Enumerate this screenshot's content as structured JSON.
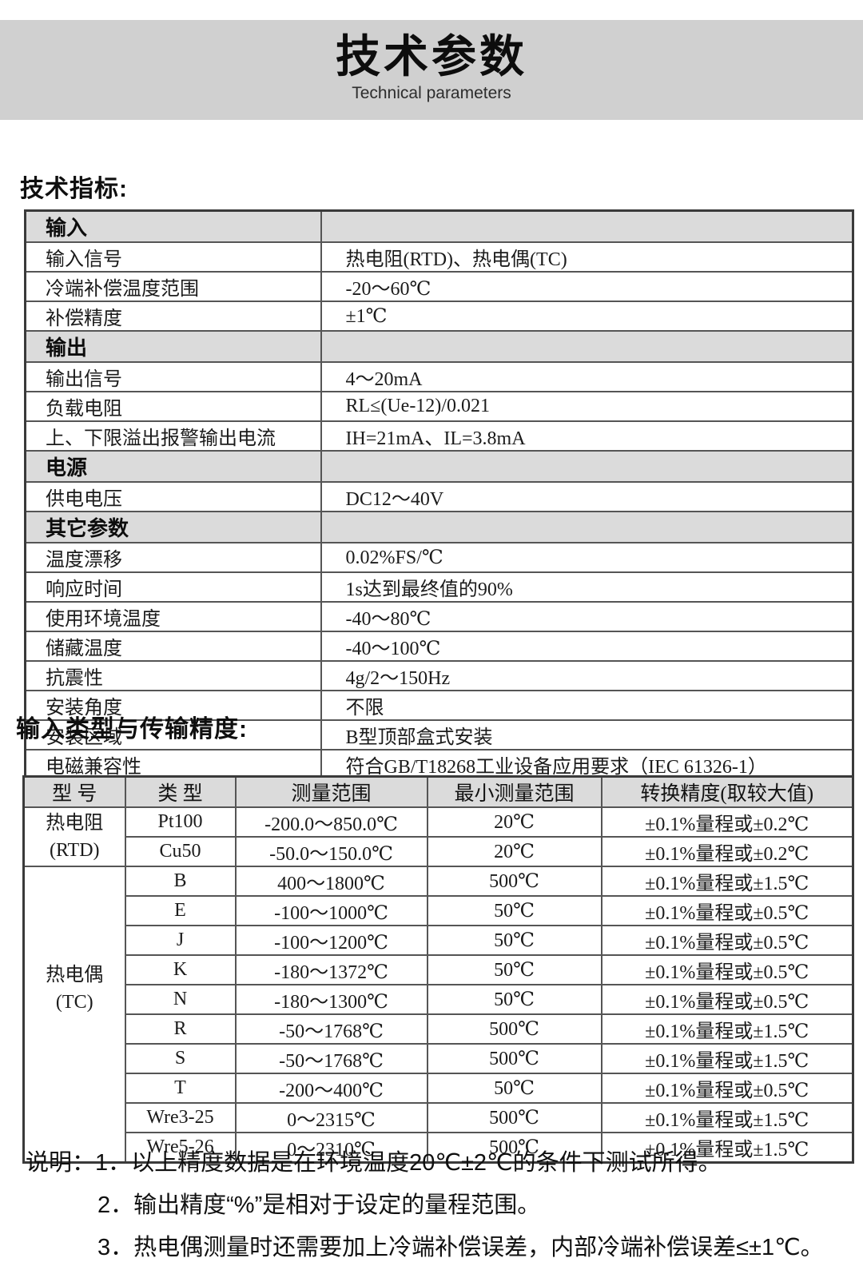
{
  "page": {
    "title": "技术参数",
    "subtitle": "Technical parameters"
  },
  "sections": {
    "spec_heading": "技术指标:",
    "accuracy_heading": "输入类型与传输精度:"
  },
  "colors": {
    "banner_bg": "#d0d0d0",
    "section_row_bg": "#dbdbdb",
    "border": "#555555",
    "text": "#1b1b1b"
  },
  "spec_table": {
    "rows": [
      {
        "type": "section",
        "label": "输入",
        "value": ""
      },
      {
        "type": "data",
        "label": "输入信号",
        "value": "热电阻(RTD)、热电偶(TC)"
      },
      {
        "type": "data",
        "label": "冷端补偿温度范围",
        "value": "-20～60℃"
      },
      {
        "type": "data",
        "label": "补偿精度",
        "value": "±1℃"
      },
      {
        "type": "section",
        "label": "输出",
        "value": ""
      },
      {
        "type": "data",
        "label": "输出信号",
        "value": "4～20mA"
      },
      {
        "type": "data",
        "label": "负载电阻",
        "value": "RL≤(Ue-12)/0.021"
      },
      {
        "type": "data",
        "label": "上、下限溢出报警输出电流",
        "value": "IH=21mA、IL=3.8mA"
      },
      {
        "type": "section",
        "label": "电源",
        "value": ""
      },
      {
        "type": "data",
        "label": "供电电压",
        "value": "DC12～40V"
      },
      {
        "type": "section",
        "label": "其它参数",
        "value": ""
      },
      {
        "type": "data",
        "label": "温度漂移",
        "value": "0.02%FS/℃"
      },
      {
        "type": "data",
        "label": "响应时间",
        "value": "1s达到最终值的90%"
      },
      {
        "type": "data",
        "label": "使用环境温度",
        "value": "-40～80℃"
      },
      {
        "type": "data",
        "label": "储藏温度",
        "value": "-40～100℃"
      },
      {
        "type": "data",
        "label": "抗震性",
        "value": "4g/2～150Hz"
      },
      {
        "type": "data",
        "label": "安装角度",
        "value": "不限"
      },
      {
        "type": "data",
        "label": "安装区域",
        "value": "B型顶部盒式安装"
      },
      {
        "type": "data",
        "label": "电磁兼容性",
        "value": "符合GB/T18268工业设备应用要求（IEC 61326-1）"
      }
    ]
  },
  "accuracy_table": {
    "headers": [
      "型 号",
      "类 型",
      "测量范围",
      "最小测量范围",
      "转换精度(取较大值)"
    ],
    "groups": [
      {
        "model": [
          "热电阻",
          "(RTD)"
        ],
        "rows": [
          [
            "Pt100",
            "-200.0～850.0℃",
            "20℃",
            "±0.1%量程或±0.2℃"
          ],
          [
            "Cu50",
            "-50.0～150.0℃",
            "20℃",
            "±0.1%量程或±0.2℃"
          ]
        ]
      },
      {
        "model": [
          "热电偶",
          "(TC)"
        ],
        "rows": [
          [
            "B",
            "400～1800℃",
            "500℃",
            "±0.1%量程或±1.5℃"
          ],
          [
            "E",
            "-100～1000℃",
            "50℃",
            "±0.1%量程或±0.5℃"
          ],
          [
            "J",
            "-100～1200℃",
            "50℃",
            "±0.1%量程或±0.5℃"
          ],
          [
            "K",
            "-180～1372℃",
            "50℃",
            "±0.1%量程或±0.5℃"
          ],
          [
            "N",
            "-180～1300℃",
            "50℃",
            "±0.1%量程或±0.5℃"
          ],
          [
            "R",
            "-50～1768℃",
            "500℃",
            "±0.1%量程或±1.5℃"
          ],
          [
            "S",
            "-50～1768℃",
            "500℃",
            "±0.1%量程或±1.5℃"
          ],
          [
            "T",
            "-200～400℃",
            "50℃",
            "±0.1%量程或±0.5℃"
          ],
          [
            "Wre3-25",
            "0～2315℃",
            "500℃",
            "±0.1%量程或±1.5℃"
          ],
          [
            "Wre5-26",
            "0～2310℃",
            "500℃",
            "±0.1%量程或±1.5℃"
          ]
        ]
      }
    ]
  },
  "notes": {
    "prefix": "说明：",
    "items": [
      "1．以上精度数据是在环境温度20℃±2℃的条件下测试所得。",
      "2．输出精度“%”是相对于设定的量程范围。",
      "3．热电偶测量时还需要加上冷端补偿误差，内部冷端补偿误差≤±1℃。"
    ]
  }
}
